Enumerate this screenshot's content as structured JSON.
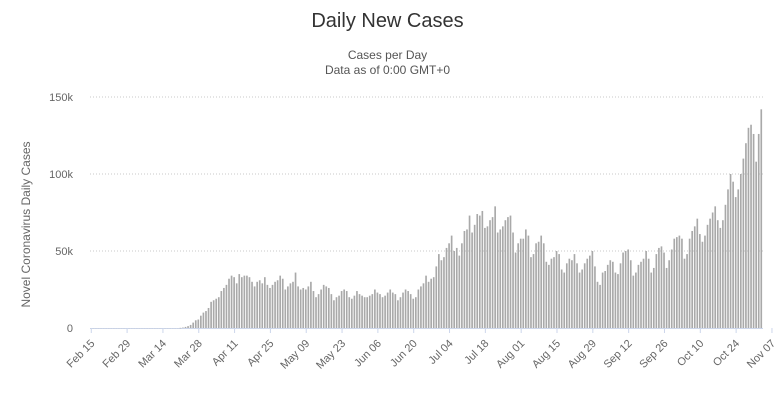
{
  "title": "Daily New Cases",
  "subtitle_line1": "Cases per Day",
  "subtitle_line2": "Data as of 0:00 GMT+0",
  "chart_data": {
    "type": "bar",
    "title": "Daily New Cases",
    "subtitle": [
      "Cases per Day",
      "Data as of 0:00 GMT+0"
    ],
    "xlabel": "",
    "ylabel": "Novel Coronavirus Daily Cases",
    "ylim": [
      0,
      150000
    ],
    "y_ticks": [
      {
        "value": 0,
        "label": "0"
      },
      {
        "value": 50000,
        "label": "50k"
      },
      {
        "value": 100000,
        "label": "100k"
      },
      {
        "value": 150000,
        "label": "150k"
      }
    ],
    "x_start": "2020-02-15",
    "x_tick_labels": [
      "Feb 15",
      "Feb 29",
      "Mar 14",
      "Mar 28",
      "Apr 11",
      "Apr 25",
      "May 09",
      "May 23",
      "Jun 06",
      "Jun 20",
      "Jul 04",
      "Jul 18",
      "Aug 01",
      "Aug 15",
      "Aug 29",
      "Sep 12",
      "Sep 26",
      "Oct 10",
      "Oct 24",
      "Nov 07"
    ],
    "grid": "horizontal",
    "color": "#a9a9a9",
    "series": [
      {
        "values": [
          0,
          0,
          0,
          0,
          0,
          0,
          0,
          0,
          0,
          0,
          0,
          0,
          0,
          0,
          0,
          0,
          0,
          0,
          0,
          0,
          0,
          0,
          0,
          0,
          0,
          0,
          0,
          0,
          0,
          0,
          0,
          0,
          0,
          0,
          0,
          100,
          300,
          700,
          1200,
          2000,
          3500,
          5000,
          5500,
          8000,
          10000,
          11000,
          13000,
          17000,
          18000,
          19000,
          20000,
          24000,
          26000,
          28000,
          32000,
          34000,
          33000,
          29000,
          35000,
          33000,
          34000,
          34000,
          33000,
          30000,
          27000,
          30000,
          31000,
          29000,
          33000,
          28000,
          26000,
          28000,
          30000,
          31000,
          34000,
          32000,
          25000,
          27000,
          29000,
          30000,
          36000,
          27000,
          25000,
          26000,
          25000,
          27000,
          30000,
          24000,
          20000,
          22000,
          25000,
          28000,
          27000,
          26000,
          22000,
          18000,
          20000,
          21000,
          24000,
          25000,
          24000,
          20000,
          19000,
          21000,
          24000,
          22000,
          21000,
          20000,
          20000,
          21000,
          22000,
          25000,
          23000,
          22000,
          20000,
          21000,
          23000,
          25000,
          23000,
          22000,
          18000,
          20000,
          23000,
          25000,
          24000,
          22000,
          19000,
          20000,
          25000,
          27000,
          29000,
          34000,
          30000,
          32000,
          33000,
          40000,
          48000,
          44000,
          46000,
          52000,
          55000,
          60000,
          50000,
          52000,
          47000,
          55000,
          63000,
          64000,
          73000,
          62000,
          67000,
          74000,
          73000,
          76000,
          65000,
          66000,
          70000,
          72000,
          79000,
          62000,
          64000,
          66000,
          70000,
          72000,
          73000,
          62000,
          49000,
          55000,
          58000,
          58000,
          64000,
          60000,
          46000,
          48000,
          55000,
          56000,
          60000,
          55000,
          43000,
          41000,
          45000,
          46000,
          50000,
          48000,
          38000,
          36000,
          42000,
          45000,
          44000,
          48000,
          42000,
          36000,
          38000,
          42000,
          45000,
          47000,
          50000,
          40000,
          30000,
          28000,
          36000,
          37000,
          41000,
          44000,
          43000,
          36000,
          35000,
          42000,
          49000,
          50000,
          51000,
          44000,
          34000,
          36000,
          41000,
          43000,
          45000,
          50000,
          45000,
          36000,
          39000,
          48000,
          52000,
          53000,
          49000,
          39000,
          44000,
          51000,
          58000,
          59000,
          60000,
          58000,
          45000,
          48000,
          58000,
          63000,
          66000,
          71000,
          61000,
          56000,
          60000,
          67000,
          71000,
          75000,
          79000,
          70000,
          65000,
          70000,
          80000,
          90000,
          100000,
          95000,
          85000,
          90000,
          100000,
          110000,
          120000,
          130000,
          132000,
          126000,
          108000,
          126000,
          142000
        ]
      }
    ]
  }
}
